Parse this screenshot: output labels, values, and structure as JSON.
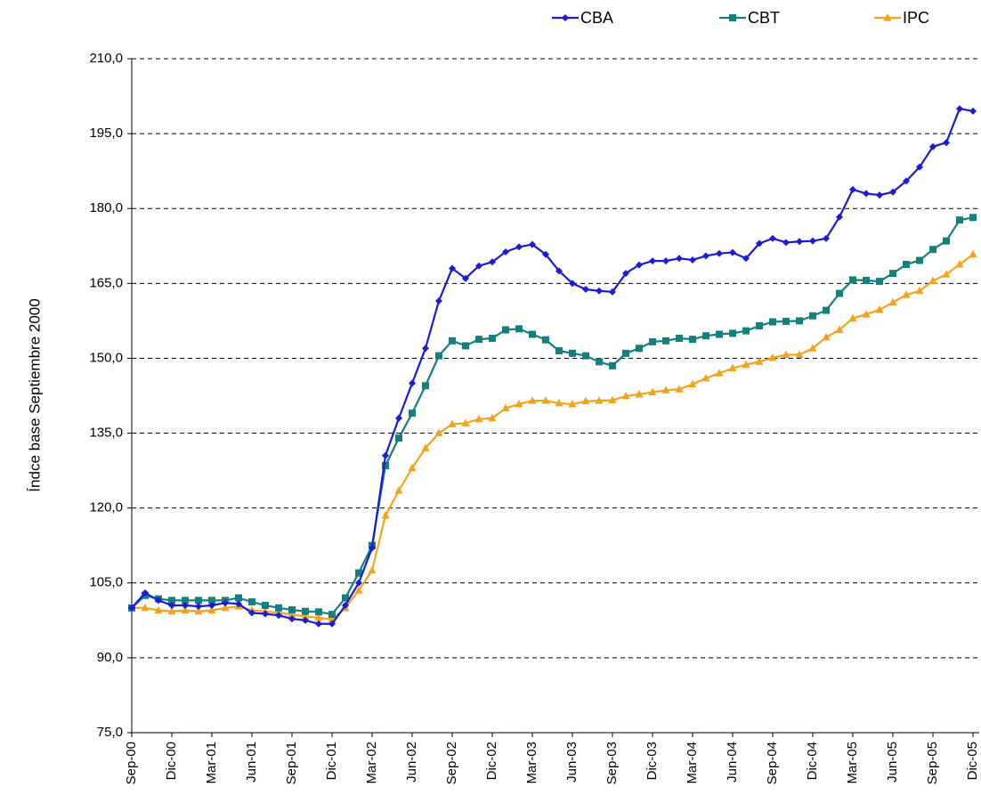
{
  "chart_data": {
    "type": "line",
    "ylabel": "Índce base Septiembre 2000",
    "categories": [
      "Sep-00",
      null,
      null,
      "Dic-00",
      null,
      null,
      "Mar-01",
      null,
      null,
      "Jun-01",
      null,
      null,
      "Sep-01",
      null,
      null,
      "Dic-01",
      null,
      null,
      "Mar-02",
      null,
      null,
      "Jun-02",
      null,
      null,
      "Sep-02",
      null,
      null,
      "Dic-02",
      null,
      null,
      "Mar-03",
      null,
      null,
      "Jun-03",
      null,
      null,
      "Sep-03",
      null,
      null,
      "Dic-03",
      null,
      null,
      "Mar-04",
      null,
      null,
      "Jun-04",
      null,
      null,
      "Sep-04",
      null,
      null,
      "Dic-04",
      null,
      null,
      "Mar-05",
      null,
      null,
      "Jun-05",
      null,
      null,
      "Sep-05",
      null,
      null,
      "Dic-05"
    ],
    "series": [
      {
        "name": "CBA",
        "color": "#1a1ad9",
        "marker": "diamond",
        "values": [
          100,
          103,
          101.5,
          100.5,
          100.5,
          100.3,
          100.5,
          101,
          100.8,
          99,
          98.8,
          98.5,
          97.8,
          97.5,
          96.8,
          96.8,
          100.5,
          105,
          112,
          130.5,
          138,
          145,
          152,
          161.5,
          168,
          166,
          168.5,
          169.3,
          171.3,
          172.3,
          172.8,
          170.8,
          167.5,
          165,
          163.8,
          163.5,
          163.3,
          167,
          168.7,
          169.5,
          169.5,
          170,
          169.7,
          170.5,
          171,
          171.2,
          170,
          173,
          174,
          173.2,
          173.4,
          173.5,
          174,
          178.3,
          183.8,
          183,
          182.7,
          183.3,
          185.5,
          188.3,
          192.4,
          193.2,
          200,
          199.5
        ]
      },
      {
        "name": "CBT",
        "color": "#138080",
        "marker": "square",
        "values": [
          100,
          102.5,
          101.8,
          101.5,
          101.5,
          101.5,
          101.5,
          101.5,
          102,
          101.2,
          100.5,
          100,
          99.6,
          99.3,
          99.2,
          98.7,
          102,
          107,
          112.5,
          128.5,
          134,
          139,
          144.5,
          150.5,
          153.5,
          152.5,
          153.8,
          154,
          155.7,
          155.9,
          154.8,
          153.7,
          151.5,
          151,
          150.5,
          149.3,
          148.5,
          151,
          152,
          153.3,
          153.5,
          154,
          153.8,
          154.5,
          154.8,
          155,
          155.5,
          156.5,
          157.3,
          157.4,
          157.5,
          158.5,
          159.6,
          163,
          165.7,
          165.6,
          165.4,
          167,
          168.8,
          169.6,
          171.8,
          173.5,
          177.7,
          178.2
        ]
      },
      {
        "name": "IPC",
        "color": "#f5a21b",
        "marker": "triangle",
        "values": [
          100,
          100,
          99.5,
          99.3,
          99.5,
          99.3,
          99.5,
          100,
          100.3,
          99.5,
          99.3,
          99,
          98.7,
          98.3,
          98,
          97.7,
          100,
          103.5,
          107.5,
          118.5,
          123.5,
          128,
          132,
          135,
          136.8,
          137,
          137.8,
          138,
          140,
          140.8,
          141.5,
          141.5,
          141,
          140.8,
          141.4,
          141.5,
          141.6,
          142.4,
          142.8,
          143.2,
          143.6,
          143.8,
          144.8,
          146,
          147,
          148,
          148.7,
          149.3,
          150.1,
          150.7,
          150.7,
          152,
          154.2,
          155.7,
          158,
          158.8,
          159.7,
          161.2,
          162.7,
          163.5,
          165.5,
          166.8,
          168.8,
          170.8
        ]
      }
    ],
    "ylim": [
      75,
      210
    ],
    "yticks": [
      {
        "value": 75,
        "label": "75,0"
      },
      {
        "value": 90,
        "label": "90,0"
      },
      {
        "value": 105,
        "label": "105,0"
      },
      {
        "value": 120,
        "label": "120,0"
      },
      {
        "value": 135,
        "label": "135,0"
      },
      {
        "value": 150,
        "label": "150,0"
      },
      {
        "value": 165,
        "label": "165,0"
      },
      {
        "value": 180,
        "label": "180,0"
      },
      {
        "value": 195,
        "label": "195,0"
      },
      {
        "value": 210,
        "label": "210,0"
      }
    ],
    "grid": true,
    "legend": "top-right"
  }
}
